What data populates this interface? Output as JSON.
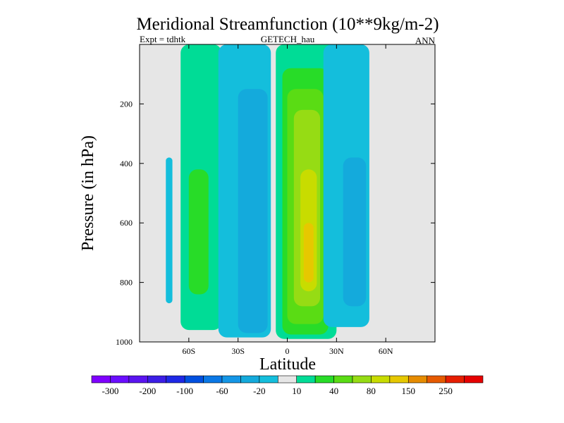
{
  "chart_data": {
    "type": "contour",
    "title": "Meridional Streamfunction (10**9kg/m-2)",
    "subtitle_left": "Expt = tdhtk",
    "subtitle_center": "GETECH_hau",
    "subtitle_right": "ANN",
    "xlabel": "Latitude",
    "ylabel": "Pressure (in hPa)",
    "xlim": [
      -90,
      90
    ],
    "ylim": [
      1000,
      0
    ],
    "xticks": [
      {
        "value": -60,
        "label": "60S"
      },
      {
        "value": -30,
        "label": "30S"
      },
      {
        "value": 0,
        "label": "0"
      },
      {
        "value": 30,
        "label": "30N"
      },
      {
        "value": 60,
        "label": "60N"
      }
    ],
    "yticks": [
      {
        "value": 200,
        "label": "200"
      },
      {
        "value": 400,
        "label": "400"
      },
      {
        "value": 600,
        "label": "600"
      },
      {
        "value": 800,
        "label": "800"
      },
      {
        "value": 1000,
        "label": "1000"
      }
    ],
    "levels": [
      -300,
      -250,
      -200,
      -150,
      -100,
      -80,
      -60,
      -40,
      -20,
      -10,
      10,
      20,
      40,
      60,
      80,
      100,
      150,
      200,
      250,
      300
    ],
    "colorbar_labels": [
      {
        "index": 1,
        "label": "-300"
      },
      {
        "index": 3,
        "label": "-200"
      },
      {
        "index": 5,
        "label": "-100"
      },
      {
        "index": 7,
        "label": "-60"
      },
      {
        "index": 9,
        "label": "-20"
      },
      {
        "index": 11,
        "label": "10"
      },
      {
        "index": 13,
        "label": "40"
      },
      {
        "index": 15,
        "label": "80"
      },
      {
        "index": 17,
        "label": "150"
      },
      {
        "index": 19,
        "label": "250"
      }
    ],
    "colors": [
      "#7f00ff",
      "#6a0dff",
      "#5a14f0",
      "#3c1ee6",
      "#1e28e6",
      "#0050e0",
      "#0a78e6",
      "#1496e6",
      "#14aadc",
      "#14bedc",
      "#e6e6e6",
      "#00dc96",
      "#28dc28",
      "#5adc14",
      "#96dc14",
      "#c8dc00",
      "#e6c800",
      "#e68c00",
      "#e65a00",
      "#e61e00",
      "#e60000"
    ],
    "background_color": "#e6e6e6",
    "regions": [
      {
        "lat_min": -74,
        "lat_max": -70,
        "p_top": 380,
        "p_bottom": 870,
        "value": -15
      },
      {
        "lat_min": -65,
        "lat_max": -40,
        "p_top": 0,
        "p_bottom": 960,
        "value": 15
      },
      {
        "lat_min": -60,
        "lat_max": -48,
        "p_top": 420,
        "p_bottom": 840,
        "value": 30
      },
      {
        "lat_min": -42,
        "lat_max": -10,
        "p_top": 0,
        "p_bottom": 985,
        "value": -15
      },
      {
        "lat_min": -30,
        "lat_max": -12,
        "p_top": 150,
        "p_bottom": 970,
        "value": -30
      },
      {
        "lat_min": -7,
        "lat_max": 30,
        "p_top": 0,
        "p_bottom": 990,
        "value": 15
      },
      {
        "lat_min": -3,
        "lat_max": 25,
        "p_top": 80,
        "p_bottom": 975,
        "value": 30
      },
      {
        "lat_min": 0,
        "lat_max": 22,
        "p_top": 150,
        "p_bottom": 940,
        "value": 50
      },
      {
        "lat_min": 4,
        "lat_max": 20,
        "p_top": 220,
        "p_bottom": 880,
        "value": 70
      },
      {
        "lat_min": 8,
        "lat_max": 18,
        "p_top": 420,
        "p_bottom": 830,
        "value": 90
      },
      {
        "lat_min": 10,
        "lat_max": 16,
        "p_top": 600,
        "p_bottom": 800,
        "value": 120
      },
      {
        "lat_min": 22,
        "lat_max": 50,
        "p_top": 0,
        "p_bottom": 950,
        "value": -15
      },
      {
        "lat_min": 34,
        "lat_max": 48,
        "p_top": 380,
        "p_bottom": 880,
        "value": -30
      }
    ]
  }
}
